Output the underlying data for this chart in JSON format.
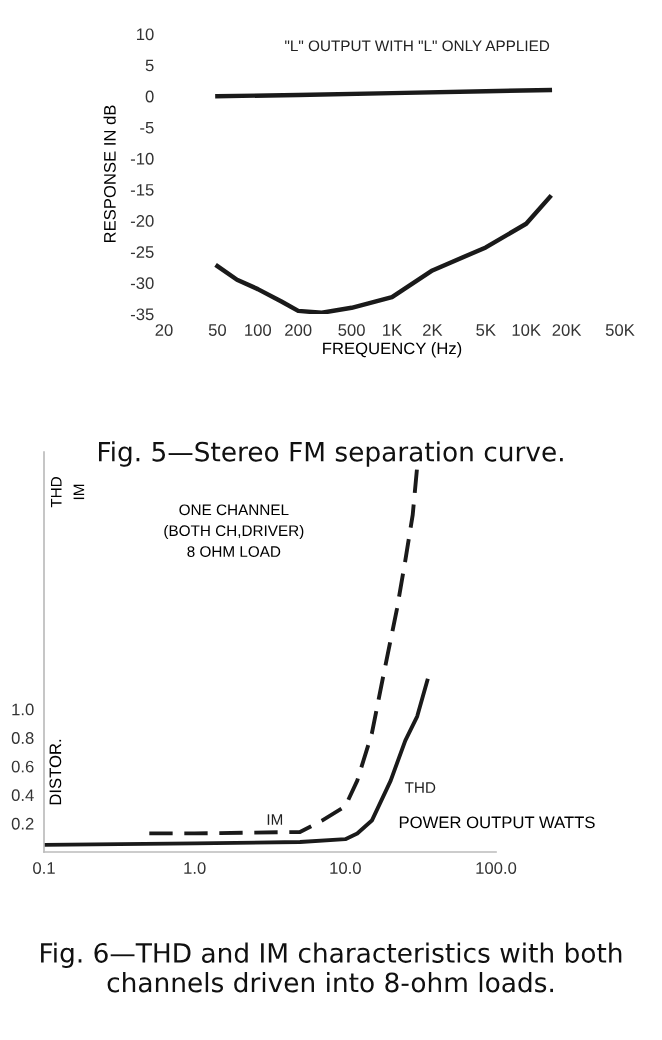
{
  "chart_data": [
    {
      "type": "line",
      "title": "Fig. 5—Stereo FM separation curve.",
      "xlabel": "FREQUENCY (Hz)",
      "ylabel": "RESPONSE IN dB",
      "log": "x",
      "xlim": [
        20,
        50000
      ],
      "xticks": [
        20,
        50,
        100,
        200,
        500,
        {
          "value": 1000,
          "label": "1K"
        },
        {
          "value": 2000,
          "label": "2K"
        },
        {
          "value": 5000,
          "label": "5K"
        },
        {
          "value": 10000,
          "label": "10K"
        },
        {
          "value": 20000,
          "label": "20K"
        },
        {
          "value": 50000,
          "label": "50K"
        }
      ],
      "ylim": [
        -35,
        10
      ],
      "yticks": [
        -35,
        -30,
        -25,
        -20,
        -15,
        -10,
        -5,
        0,
        5,
        10
      ],
      "grid": false,
      "legend": false,
      "series": [
        {
          "name": "\"L\" OUTPUT WITH \"L\" ONLY APPLIED",
          "color": "#1a1a1a",
          "x": [
            50,
            200,
            1000,
            5000,
            15000
          ],
          "values": [
            0,
            0.2,
            0.5,
            0.8,
            1
          ]
        },
        {
          "color": "#1a1a1a",
          "x": [
            50,
            70,
            100,
            150,
            200,
            300,
            500,
            1000,
            2000,
            5000,
            10000,
            15000
          ],
          "values": [
            -27.3,
            -29.5,
            -31,
            -33,
            -34.5,
            -34.8,
            -34,
            -32.3,
            -28,
            -24.3,
            -20.5,
            -16.2
          ]
        }
      ]
    },
    {
      "type": "line",
      "title": "Fig. 6—THD and IM characteristics with both channels driven into 8-ohm loads.",
      "xlabel": "POWER OUTPUT WATTS",
      "ylabel": "DISTOR.",
      "log": "x",
      "xlim": [
        0.1,
        100
      ],
      "xticks": [
        0.1,
        {
          "value": 1,
          "label": "1.0"
        },
        {
          "value": 10,
          "label": "10.0"
        },
        {
          "value": 100,
          "label": "100.0"
        }
      ],
      "ylim": [
        0,
        2.8
      ],
      "yticks": [
        0.2,
        0.4,
        0.6,
        0.8,
        {
          "value": 1,
          "label": "1.0"
        }
      ],
      "grid": false,
      "legend": false,
      "annotations": [
        "ONE CHANNEL\n(BOTH CH,DRIVER)\n8 OHM LOAD",
        "THD",
        "IM"
      ],
      "series": [
        {
          "name": "THD",
          "color": "#1a1a1a",
          "line_style": "solid",
          "x": [
            0.1,
            1,
            5,
            10,
            12,
            15,
            20,
            25,
            30,
            35
          ],
          "values": [
            0.05,
            0.06,
            0.07,
            0.09,
            0.13,
            0.22,
            0.5,
            0.78,
            0.95,
            1.2
          ]
        },
        {
          "name": "IM",
          "color": "#1a1a1a",
          "line_style": "dashed",
          "x": [
            0.5,
            1,
            5,
            7,
            10,
            12,
            15,
            18,
            22,
            25,
            28,
            30
          ],
          "values": [
            0.13,
            0.13,
            0.14,
            0.22,
            0.32,
            0.5,
            0.83,
            1.25,
            1.7,
            2.04,
            2.36,
            2.7
          ]
        }
      ]
    }
  ]
}
